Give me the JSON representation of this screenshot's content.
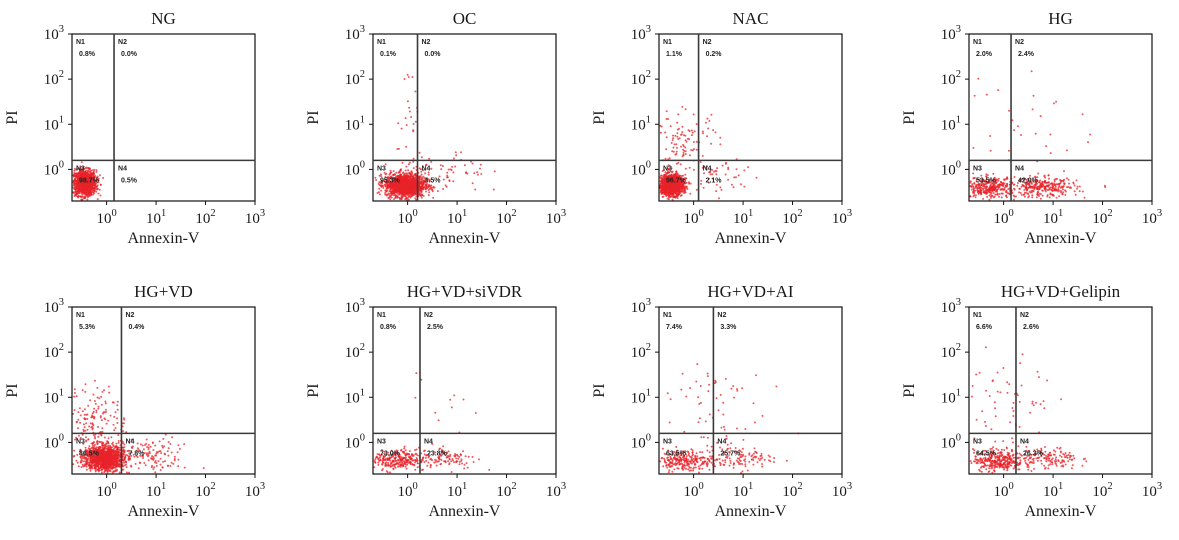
{
  "figure": {
    "dot_color": "#e8232a",
    "frame_color": "#111111",
    "gate_color": "#3a3a3a"
  },
  "chart_data": [
    {
      "type": "scatter",
      "title": "NG",
      "xlabel": "Annexin-V",
      "ylabel": "PI",
      "xlim": [
        -0.7,
        3
      ],
      "ylim": [
        -0.7,
        3
      ],
      "x_scale": "log",
      "y_scale": "log",
      "x_ticks": [
        "10^0",
        "10^1",
        "10^2",
        "10^3"
      ],
      "y_ticks": [
        "10^0",
        "10^1",
        "10^2",
        "10^3"
      ],
      "gate": [
        0.15,
        0.2
      ],
      "quadrants": [
        {
          "name": "N1",
          "pct": "0.8%"
        },
        {
          "name": "N2",
          "pct": "0.0%"
        },
        {
          "name": "N3",
          "pct": "98.7%"
        },
        {
          "name": "N4",
          "pct": "0.5%"
        }
      ],
      "populations": [
        {
          "cx": -0.45,
          "cy": -0.3,
          "sx": 0.12,
          "sy": 0.14,
          "n": 1200
        }
      ]
    },
    {
      "type": "scatter",
      "title": "OC",
      "xlabel": "Annexin-V",
      "ylabel": "PI",
      "xlim": [
        -0.7,
        3
      ],
      "ylim": [
        -0.7,
        3
      ],
      "x_scale": "log",
      "y_scale": "log",
      "x_ticks": [
        "10^0",
        "10^1",
        "10^2",
        "10^3"
      ],
      "y_ticks": [
        "10^0",
        "10^1",
        "10^2",
        "10^3"
      ],
      "gate": [
        0.2,
        0.2
      ],
      "quadrants": [
        {
          "name": "N1",
          "pct": "0.1%"
        },
        {
          "name": "N2",
          "pct": "0.0%"
        },
        {
          "name": "N3",
          "pct": "95.3%"
        },
        {
          "name": "N4",
          "pct": "4.5%"
        }
      ],
      "populations": [
        {
          "cx": -0.05,
          "cy": -0.35,
          "sx": 0.2,
          "sy": 0.13,
          "n": 1500
        },
        {
          "cx": 0.7,
          "cy": -0.1,
          "sx": 0.45,
          "sy": 0.25,
          "n": 70
        },
        {
          "cx": 0.05,
          "cy": 1.2,
          "sx": 0.12,
          "sy": 0.7,
          "n": 25
        }
      ]
    },
    {
      "type": "scatter",
      "title": "NAC",
      "xlabel": "Annexin-V",
      "ylabel": "PI",
      "xlim": [
        -0.7,
        3
      ],
      "ylim": [
        -0.7,
        3
      ],
      "x_scale": "log",
      "y_scale": "log",
      "x_ticks": [
        "10^0",
        "10^1",
        "10^2",
        "10^3"
      ],
      "y_ticks": [
        "10^0",
        "10^1",
        "10^2",
        "10^3"
      ],
      "gate": [
        0.1,
        0.2
      ],
      "quadrants": [
        {
          "name": "N1",
          "pct": "1.1%"
        },
        {
          "name": "N2",
          "pct": "0.2%"
        },
        {
          "name": "N3",
          "pct": "96.7%"
        },
        {
          "name": "N4",
          "pct": "2.1%"
        }
      ],
      "populations": [
        {
          "cx": -0.45,
          "cy": -0.35,
          "sx": 0.12,
          "sy": 0.11,
          "n": 1400
        },
        {
          "cx": -0.2,
          "cy": 0.6,
          "sx": 0.35,
          "sy": 0.35,
          "n": 120
        },
        {
          "cx": 0.6,
          "cy": -0.2,
          "sx": 0.4,
          "sy": 0.25,
          "n": 45
        }
      ]
    },
    {
      "type": "scatter",
      "title": "HG",
      "xlabel": "Annexin-V",
      "ylabel": "PI",
      "xlim": [
        -0.7,
        3
      ],
      "ylim": [
        -0.7,
        3
      ],
      "x_scale": "log",
      "y_scale": "log",
      "x_ticks": [
        "10^0",
        "10^1",
        "10^2",
        "10^3"
      ],
      "y_ticks": [
        "10^0",
        "10^1",
        "10^2",
        "10^3"
      ],
      "gate": [
        0.15,
        0.2
      ],
      "quadrants": [
        {
          "name": "N1",
          "pct": "2.0%"
        },
        {
          "name": "N2",
          "pct": "2.4%"
        },
        {
          "name": "N3",
          "pct": "53.5%"
        },
        {
          "name": "N4",
          "pct": "42.0%"
        }
      ],
      "populations": [
        {
          "cx": -0.3,
          "cy": -0.4,
          "sx": 0.28,
          "sy": 0.11,
          "n": 350
        },
        {
          "cx": 0.8,
          "cy": -0.4,
          "sx": 0.35,
          "sy": 0.11,
          "n": 300
        },
        {
          "cx": 0.4,
          "cy": 1.0,
          "sx": 0.6,
          "sy": 0.7,
          "n": 35
        }
      ]
    },
    {
      "type": "scatter",
      "title": "HG+VD",
      "xlabel": "Annexin-V",
      "ylabel": "PI",
      "xlim": [
        -0.7,
        3
      ],
      "ylim": [
        -0.7,
        3
      ],
      "x_scale": "log",
      "y_scale": "log",
      "x_ticks": [
        "10^0",
        "10^1",
        "10^2",
        "10^3"
      ],
      "y_ticks": [
        "10^0",
        "10^1",
        "10^2",
        "10^3"
      ],
      "gate": [
        0.3,
        0.2
      ],
      "quadrants": [
        {
          "name": "N1",
          "pct": "5.3%"
        },
        {
          "name": "N2",
          "pct": "0.4%"
        },
        {
          "name": "N3",
          "pct": "86.5%"
        },
        {
          "name": "N4",
          "pct": "7.8%"
        }
      ],
      "populations": [
        {
          "cx": -0.05,
          "cy": -0.35,
          "sx": 0.2,
          "sy": 0.14,
          "n": 1300
        },
        {
          "cx": -0.2,
          "cy": 0.5,
          "sx": 0.3,
          "sy": 0.35,
          "n": 160
        },
        {
          "cx": 0.9,
          "cy": -0.3,
          "sx": 0.35,
          "sy": 0.2,
          "n": 130
        }
      ]
    },
    {
      "type": "scatter",
      "title": "HG+VD+siVDR",
      "xlabel": "Annexin-V",
      "ylabel": "PI",
      "xlim": [
        -0.7,
        3
      ],
      "ylim": [
        -0.7,
        3
      ],
      "x_scale": "log",
      "y_scale": "log",
      "x_ticks": [
        "10^0",
        "10^1",
        "10^2",
        "10^3"
      ],
      "y_ticks": [
        "10^0",
        "10^1",
        "10^2",
        "10^3"
      ],
      "gate": [
        0.25,
        0.2
      ],
      "quadrants": [
        {
          "name": "N1",
          "pct": "0.8%"
        },
        {
          "name": "N2",
          "pct": "2.5%"
        },
        {
          "name": "N3",
          "pct": "73.0%"
        },
        {
          "name": "N4",
          "pct": "23.8%"
        }
      ],
      "populations": [
        {
          "cx": -0.25,
          "cy": -0.4,
          "sx": 0.3,
          "sy": 0.11,
          "n": 300
        },
        {
          "cx": 0.8,
          "cy": -0.35,
          "sx": 0.3,
          "sy": 0.12,
          "n": 100
        },
        {
          "cx": 0.6,
          "cy": 0.9,
          "sx": 0.5,
          "sy": 0.6,
          "n": 15
        }
      ]
    },
    {
      "type": "scatter",
      "title": "HG+VD+AI",
      "xlabel": "Annexin-V",
      "ylabel": "PI",
      "xlim": [
        -0.7,
        3
      ],
      "ylim": [
        -0.7,
        3
      ],
      "x_scale": "log",
      "y_scale": "log",
      "x_ticks": [
        "10^0",
        "10^1",
        "10^2",
        "10^3"
      ],
      "y_ticks": [
        "10^0",
        "10^1",
        "10^2",
        "10^3"
      ],
      "gate": [
        0.4,
        0.2
      ],
      "quadrants": [
        {
          "name": "N1",
          "pct": "7.4%"
        },
        {
          "name": "N2",
          "pct": "3.3%"
        },
        {
          "name": "N3",
          "pct": "63.5%"
        },
        {
          "name": "N4",
          "pct": "25.7%"
        }
      ],
      "populations": [
        {
          "cx": -0.2,
          "cy": -0.4,
          "sx": 0.3,
          "sy": 0.12,
          "n": 260
        },
        {
          "cx": 0.9,
          "cy": -0.35,
          "sx": 0.35,
          "sy": 0.13,
          "n": 110
        },
        {
          "cx": 0.3,
          "cy": 0.8,
          "sx": 0.55,
          "sy": 0.6,
          "n": 60
        }
      ]
    },
    {
      "type": "scatter",
      "title": "HG+VD+Gelipin",
      "xlabel": "Annexin-V",
      "ylabel": "PI",
      "xlim": [
        -0.7,
        3
      ],
      "ylim": [
        -0.7,
        3
      ],
      "x_scale": "log",
      "y_scale": "log",
      "x_ticks": [
        "10^0",
        "10^1",
        "10^2",
        "10^3"
      ],
      "y_ticks": [
        "10^0",
        "10^1",
        "10^2",
        "10^3"
      ],
      "gate": [
        0.25,
        0.2
      ],
      "quadrants": [
        {
          "name": "N1",
          "pct": "6.6%"
        },
        {
          "name": "N2",
          "pct": "2.6%"
        },
        {
          "name": "N3",
          "pct": "64.5%"
        },
        {
          "name": "N4",
          "pct": "26.3%"
        }
      ],
      "populations": [
        {
          "cx": -0.1,
          "cy": -0.4,
          "sx": 0.25,
          "sy": 0.12,
          "n": 330
        },
        {
          "cx": 0.9,
          "cy": -0.35,
          "sx": 0.3,
          "sy": 0.12,
          "n": 140
        },
        {
          "cx": 0.1,
          "cy": 0.8,
          "sx": 0.45,
          "sy": 0.7,
          "n": 60
        }
      ]
    }
  ]
}
